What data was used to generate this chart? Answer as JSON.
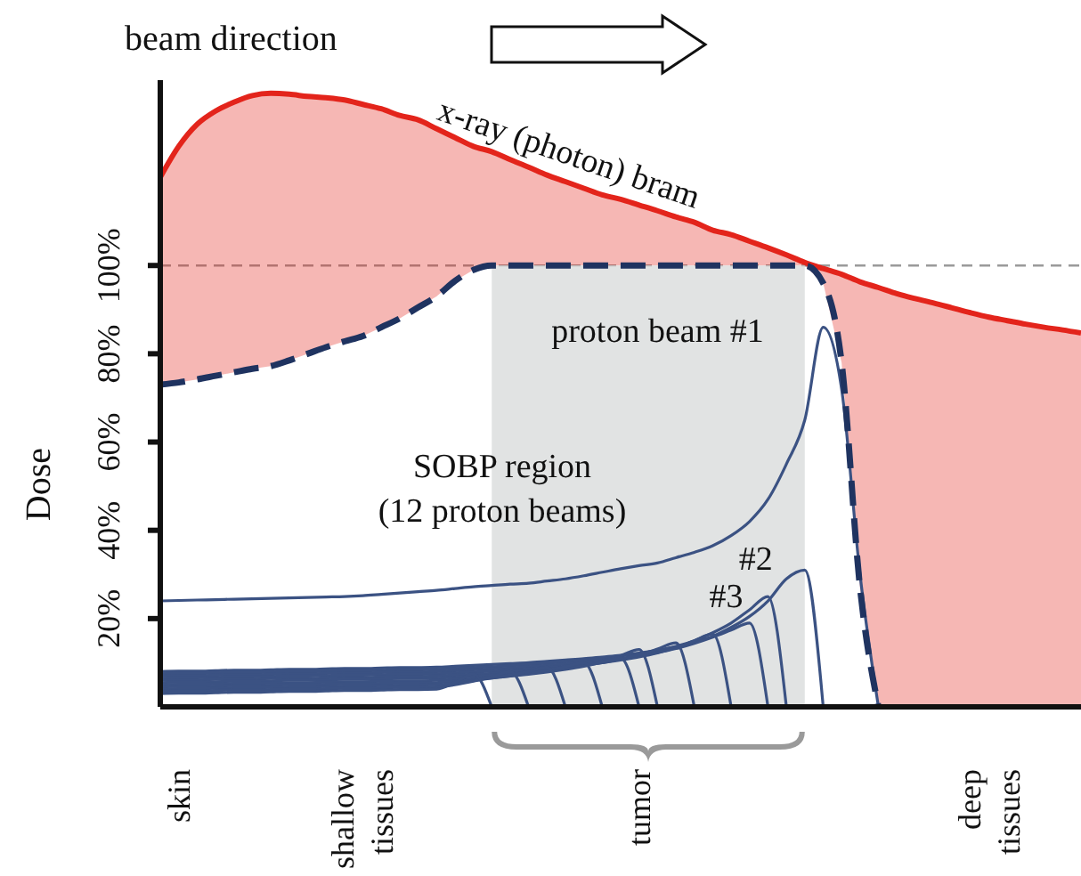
{
  "chart_data": {
    "type": "line",
    "title": "beam direction",
    "ylabel": "Dose",
    "ylim": [
      0,
      142
    ],
    "categories": [
      null,
      "skin",
      null,
      null,
      null,
      null,
      null,
      null,
      null,
      null,
      null,
      "shallow tissues",
      null,
      null,
      null,
      null,
      null,
      null,
      null,
      null,
      null,
      null,
      null,
      null,
      null,
      null,
      "tumor",
      null,
      null,
      null,
      null,
      null,
      null,
      null,
      null,
      null,
      null,
      null,
      null,
      null,
      null,
      null,
      null,
      null,
      null,
      "deep tissues",
      null,
      null,
      null,
      null,
      null
    ],
    "yticks": [
      {
        "value": 20,
        "label": "20%"
      },
      {
        "value": 40,
        "label": "40%"
      },
      {
        "value": 60,
        "label": "60%"
      },
      {
        "value": 80,
        "label": "80%"
      },
      {
        "value": 100,
        "label": "100%"
      }
    ],
    "annotations": [
      "SOBP region",
      "(12 proton beams)"
    ],
    "ref_lines": [
      {
        "axis": "y",
        "value": 100,
        "color": "#9a9a9a",
        "line_style": "dashed"
      }
    ],
    "series": [
      {
        "type": "area",
        "name": "x-ray (photon) bram",
        "color": "#e3241b",
        "values": [
          120,
          127,
          132,
          135,
          137,
          138.5,
          139,
          138.8,
          138.3,
          138,
          137.5,
          136.5,
          135.5,
          134,
          133,
          131,
          129,
          127,
          125.8,
          124,
          122.3,
          120.5,
          119,
          117.5,
          116,
          115,
          113.7,
          112.4,
          111,
          109.8,
          108,
          107,
          105.5,
          104,
          102.4,
          100.7,
          99.3,
          98,
          96.3,
          95,
          93.6,
          92.5,
          91.5,
          90.4,
          89.3,
          88.3,
          87.5,
          86.7,
          86,
          85.4,
          84.7
        ]
      },
      {
        "line_style": "dashed",
        "color": "#1f3360",
        "values": [
          73,
          73.5,
          74.2,
          75,
          75.8,
          76.6,
          77.2,
          78.5,
          80,
          81.5,
          82.8,
          84,
          86,
          88,
          90.5,
          93,
          96.5,
          99,
          100,
          100,
          100,
          100,
          100,
          100,
          100,
          100,
          100,
          100,
          100,
          100,
          100,
          100,
          100,
          100,
          100,
          100,
          96,
          78,
          27,
          0,
          null,
          null,
          null,
          null,
          null,
          null,
          null,
          null,
          null,
          null,
          null
        ]
      },
      {
        "name": "proton beam #1",
        "color": "#3b5283",
        "values": [
          24,
          24.1,
          24.2,
          24.3,
          24.4,
          24.5,
          24.6,
          24.7,
          24.8,
          24.9,
          25,
          25.2,
          25.5,
          25.8,
          26.1,
          26.4,
          26.8,
          27.2,
          27.5,
          27.8,
          28,
          28.5,
          29,
          29.7,
          30.5,
          31.3,
          32,
          32.6,
          33.8,
          35,
          36.5,
          38.8,
          42,
          47,
          55,
          65,
          86,
          72,
          30,
          0,
          null,
          null,
          null,
          null,
          null,
          null,
          null,
          null,
          null,
          null,
          null
        ]
      },
      {
        "name": "#2",
        "color": "#3b5283",
        "values": [
          8,
          8.1,
          8.1,
          8.2,
          8.3,
          8.3,
          8.4,
          8.5,
          8.5,
          8.6,
          8.7,
          8.7,
          8.8,
          8.9,
          8.9,
          9,
          9.2,
          9.4,
          9.6,
          9.8,
          10,
          10.3,
          10.6,
          10.9,
          11.3,
          11.7,
          12.2,
          12.8,
          13.6,
          14.8,
          16,
          18,
          20.5,
          24,
          29,
          31,
          0,
          null,
          null,
          null,
          null,
          null,
          null,
          null,
          null,
          null,
          null,
          null,
          null,
          null,
          null
        ]
      },
      {
        "name": "#3",
        "color": "#3b5283",
        "values": [
          7.5,
          7.6,
          7.6,
          7.7,
          7.8,
          7.8,
          7.9,
          8,
          8,
          8.1,
          8.2,
          8.2,
          8.3,
          8.4,
          8.4,
          8.5,
          8.7,
          8.9,
          9.1,
          9.3,
          9.6,
          9.9,
          10.2,
          10.6,
          11,
          11.5,
          12.1,
          12.8,
          13.7,
          15,
          16.8,
          19,
          22,
          25,
          0,
          null,
          null,
          null,
          null,
          null,
          null,
          null,
          null,
          null,
          null,
          null,
          null,
          null,
          null,
          null,
          null
        ]
      },
      {
        "color": "#3b5283",
        "values": [
          7,
          7.1,
          7.1,
          7.2,
          7.3,
          7.3,
          7.4,
          7.5,
          7.5,
          7.6,
          7.7,
          7.7,
          7.8,
          7.9,
          7.9,
          8,
          8.2,
          8.4,
          8.6,
          8.8,
          9.1,
          9.4,
          9.7,
          10.1,
          10.5,
          11,
          11.6,
          12.3,
          13.2,
          14.4,
          15.8,
          17.4,
          19,
          0,
          null,
          null,
          null,
          null,
          null,
          null,
          null,
          null,
          null,
          null,
          null,
          null,
          null,
          null,
          null,
          null,
          null
        ]
      },
      {
        "color": "#3b5283",
        "values": [
          6.5,
          6.6,
          6.6,
          6.7,
          6.8,
          6.8,
          6.9,
          7,
          7,
          7.1,
          7.2,
          7.2,
          7.3,
          7.4,
          7.4,
          7.5,
          7.7,
          7.9,
          8.1,
          8.3,
          8.6,
          8.9,
          9.2,
          9.6,
          10,
          10.6,
          11.3,
          12.2,
          13.4,
          15,
          16.5,
          0,
          null,
          null,
          null,
          null,
          null,
          null,
          null,
          null,
          null,
          null,
          null,
          null,
          null,
          null,
          null,
          null,
          null,
          null,
          null
        ]
      },
      {
        "color": "#3b5283",
        "values": [
          6,
          6.1,
          6.1,
          6.2,
          6.3,
          6.3,
          6.4,
          6.5,
          6.5,
          6.6,
          6.7,
          6.7,
          6.8,
          6.9,
          6.9,
          7,
          7.2,
          7.4,
          7.6,
          7.9,
          8.2,
          8.5,
          8.9,
          9.4,
          10,
          10.8,
          11.8,
          13.1,
          14.5,
          0,
          null,
          null,
          null,
          null,
          null,
          null,
          null,
          null,
          null,
          null,
          null,
          null,
          null,
          null,
          null,
          null,
          null,
          null,
          null,
          null,
          null
        ]
      },
      {
        "color": "#3b5283",
        "values": [
          5.5,
          5.6,
          5.6,
          5.7,
          5.8,
          5.8,
          5.9,
          6,
          6,
          6.1,
          6.2,
          6.2,
          6.3,
          6.4,
          6.4,
          6.5,
          6.7,
          6.9,
          7.2,
          7.5,
          7.9,
          8.3,
          8.8,
          9.5,
          10.4,
          11.6,
          13,
          0,
          null,
          null,
          null,
          null,
          null,
          null,
          null,
          null,
          null,
          null,
          null,
          null,
          null,
          null,
          null,
          null,
          null,
          null,
          null,
          null,
          null,
          null,
          null
        ]
      },
      {
        "color": "#3b5283",
        "values": [
          5,
          5.1,
          5.1,
          5.2,
          5.3,
          5.3,
          5.4,
          5.5,
          5.5,
          5.6,
          5.7,
          5.7,
          5.8,
          5.9,
          5.9,
          6,
          6.2,
          6.4,
          6.7,
          7,
          7.4,
          7.9,
          8.5,
          9.2,
          10.1,
          11,
          0,
          null,
          null,
          null,
          null,
          null,
          null,
          null,
          null,
          null,
          null,
          null,
          null,
          null,
          null,
          null,
          null,
          null,
          null,
          null,
          null,
          null,
          null,
          null,
          null
        ]
      },
      {
        "color": "#3b5283",
        "values": [
          4.5,
          4.6,
          4.6,
          4.7,
          4.8,
          4.8,
          4.9,
          5,
          5,
          5.1,
          5.2,
          5.2,
          5.3,
          5.4,
          5.4,
          5.5,
          5.8,
          6.1,
          6.5,
          7,
          7.6,
          8.3,
          9.1,
          10,
          0,
          null,
          null,
          null,
          null,
          null,
          null,
          null,
          null,
          null,
          null,
          null,
          null,
          null,
          null,
          null,
          null,
          null,
          null,
          null,
          null,
          null,
          null,
          null,
          null,
          null,
          null
        ]
      },
      {
        "color": "#3b5283",
        "values": [
          4,
          4.1,
          4.1,
          4.2,
          4.3,
          4.3,
          4.4,
          4.5,
          4.5,
          4.6,
          4.7,
          4.7,
          4.8,
          4.9,
          4.9,
          5,
          5.4,
          5.9,
          6.5,
          7.2,
          8,
          9,
          0,
          null,
          null,
          null,
          null,
          null,
          null,
          null,
          null,
          null,
          null,
          null,
          null,
          null,
          null,
          null,
          null,
          null,
          null,
          null,
          null,
          null,
          null,
          null,
          null,
          null,
          null,
          null,
          null
        ]
      },
      {
        "color": "#3b5283",
        "values": [
          3.5,
          3.6,
          3.6,
          3.7,
          3.8,
          3.8,
          3.9,
          4,
          4,
          4.1,
          4.2,
          4.2,
          4.3,
          4.4,
          4.4,
          4.5,
          5,
          5.8,
          6.8,
          8,
          0,
          null,
          null,
          null,
          null,
          null,
          null,
          null,
          null,
          null,
          null,
          null,
          null,
          null,
          null,
          null,
          null,
          null,
          null,
          null,
          null,
          null,
          null,
          null,
          null,
          null,
          null,
          null,
          null,
          null,
          null
        ]
      },
      {
        "color": "#3b5283",
        "values": [
          3,
          3.1,
          3.1,
          3.2,
          3.3,
          3.3,
          3.4,
          3.5,
          3.5,
          3.6,
          3.7,
          3.7,
          3.8,
          3.9,
          3.9,
          4,
          5.5,
          7.5,
          0,
          null,
          null,
          null,
          null,
          null,
          null,
          null,
          null,
          null,
          null,
          null,
          null,
          null,
          null,
          null,
          null,
          null,
          null,
          null,
          null,
          null,
          null,
          null,
          null,
          null,
          null,
          null,
          null,
          null,
          null,
          null,
          null
        ]
      }
    ]
  }
}
